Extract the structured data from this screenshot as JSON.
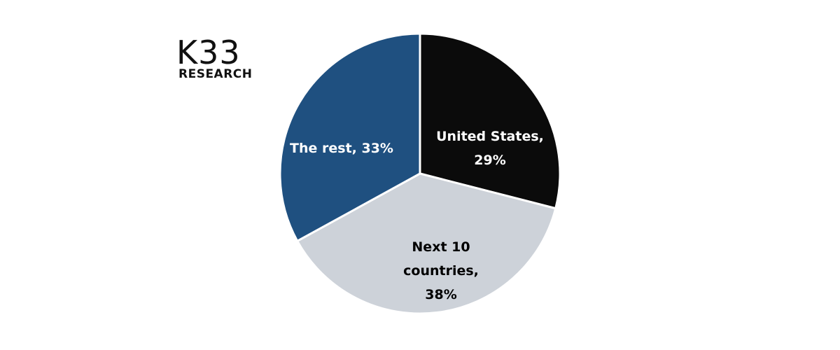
{
  "logo": {
    "mark": "K33",
    "text": "RESEARCH"
  },
  "chart_data": {
    "type": "pie",
    "values": [
      29,
      38,
      33
    ],
    "value_labels": [
      "United States, 29%",
      "Next 10 countries, 38%",
      "The rest, 33%"
    ],
    "colors": [
      "#0b0b0b",
      "#cdd2d9",
      "#1f5080"
    ]
  }
}
